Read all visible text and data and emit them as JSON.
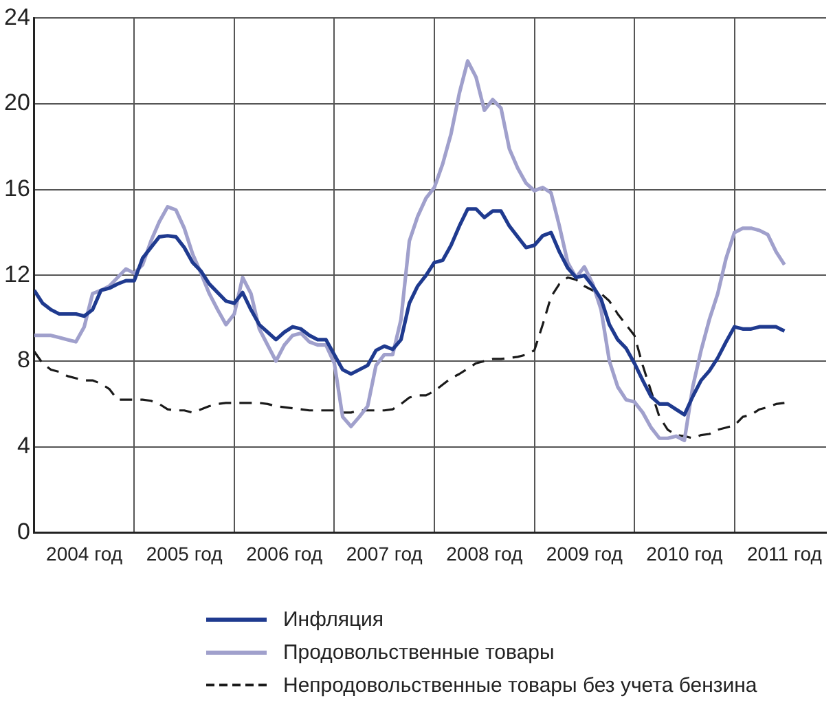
{
  "chart_data": {
    "type": "line",
    "x": [
      "2004-01",
      "2004-02",
      "2004-03",
      "2004-04",
      "2004-05",
      "2004-06",
      "2004-07",
      "2004-08",
      "2004-09",
      "2004-10",
      "2004-11",
      "2004-12",
      "2005-01",
      "2005-02",
      "2005-03",
      "2005-04",
      "2005-05",
      "2005-06",
      "2005-07",
      "2005-08",
      "2005-09",
      "2005-10",
      "2005-11",
      "2005-12",
      "2006-01",
      "2006-02",
      "2006-03",
      "2006-04",
      "2006-05",
      "2006-06",
      "2006-07",
      "2006-08",
      "2006-09",
      "2006-10",
      "2006-11",
      "2006-12",
      "2007-01",
      "2007-02",
      "2007-03",
      "2007-04",
      "2007-05",
      "2007-06",
      "2007-07",
      "2007-08",
      "2007-09",
      "2007-10",
      "2007-11",
      "2007-12",
      "2008-01",
      "2008-02",
      "2008-03",
      "2008-04",
      "2008-05",
      "2008-06",
      "2008-07",
      "2008-08",
      "2008-09",
      "2008-10",
      "2008-11",
      "2008-12",
      "2009-01",
      "2009-02",
      "2009-03",
      "2009-04",
      "2009-05",
      "2009-06",
      "2009-07",
      "2009-08",
      "2009-09",
      "2009-10",
      "2009-11",
      "2009-12",
      "2010-01",
      "2010-02",
      "2010-03",
      "2010-04",
      "2010-05",
      "2010-06",
      "2010-07",
      "2010-08",
      "2010-09",
      "2010-10",
      "2010-11",
      "2010-12",
      "2011-01",
      "2011-02",
      "2011-03",
      "2011-04",
      "2011-05",
      "2011-06",
      "2011-07"
    ],
    "series": [
      {
        "name": "Инфляция",
        "color": "#1f3a8f",
        "values": [
          11.3,
          10.7,
          10.4,
          10.2,
          10.2,
          10.2,
          10.1,
          10.4,
          11.3,
          11.4,
          11.6,
          11.75,
          11.75,
          12.8,
          13.3,
          13.8,
          13.85,
          13.8,
          13.3,
          12.6,
          12.2,
          11.6,
          11.2,
          10.8,
          10.7,
          11.2,
          10.4,
          9.7,
          9.35,
          9.0,
          9.35,
          9.6,
          9.5,
          9.2,
          9.0,
          9.0,
          8.3,
          7.6,
          7.4,
          7.6,
          7.8,
          8.5,
          8.7,
          8.55,
          9.0,
          10.7,
          11.5,
          12.0,
          12.6,
          12.7,
          13.4,
          14.3,
          15.1,
          15.1,
          14.7,
          15.0,
          15.0,
          14.3,
          13.8,
          13.3,
          13.4,
          13.85,
          14.0,
          13.1,
          12.35,
          11.9,
          12.0,
          11.5,
          10.9,
          9.7,
          9.0,
          8.6,
          7.9,
          7.1,
          6.35,
          6.0,
          6.0,
          5.75,
          5.5,
          6.35,
          7.1,
          7.55,
          8.15,
          8.9,
          9.6,
          9.5,
          9.5,
          9.6,
          9.6,
          9.6,
          9.4
        ]
      },
      {
        "name": "Продовольственные товары",
        "color": "#a0a0cc",
        "values": [
          9.2,
          9.2,
          9.2,
          9.1,
          9.0,
          8.9,
          9.6,
          11.15,
          11.3,
          11.5,
          11.9,
          12.3,
          12.1,
          12.5,
          13.6,
          14.5,
          15.2,
          15.05,
          14.2,
          13.0,
          12.1,
          11.15,
          10.4,
          9.7,
          10.2,
          11.9,
          11.15,
          9.5,
          8.75,
          8.0,
          8.75,
          9.2,
          9.3,
          8.9,
          8.75,
          8.75,
          7.9,
          5.4,
          4.95,
          5.4,
          5.9,
          7.8,
          8.3,
          8.3,
          9.95,
          13.6,
          14.75,
          15.6,
          16.1,
          17.2,
          18.6,
          20.5,
          22.0,
          21.25,
          19.7,
          20.2,
          19.8,
          17.9,
          17.0,
          16.3,
          15.95,
          16.1,
          15.85,
          14.3,
          12.6,
          11.9,
          12.4,
          11.6,
          10.4,
          8.0,
          6.8,
          6.2,
          6.1,
          5.6,
          4.9,
          4.4,
          4.4,
          4.5,
          4.3,
          6.8,
          8.5,
          9.95,
          11.15,
          12.8,
          14.0,
          14.2,
          14.2,
          14.1,
          13.9,
          13.1,
          12.5
        ]
      },
      {
        "name": "Непродовольственные товары без учета бензина",
        "color": "#1a1a1a",
        "line_style": "dashed",
        "values": [
          8.45,
          7.9,
          7.6,
          7.5,
          7.3,
          7.2,
          7.1,
          7.1,
          6.95,
          6.7,
          6.2,
          6.2,
          6.2,
          6.2,
          6.15,
          6.0,
          5.75,
          5.7,
          5.7,
          5.6,
          5.75,
          5.9,
          6.0,
          6.05,
          6.05,
          6.05,
          6.05,
          6.05,
          6.0,
          5.9,
          5.85,
          5.8,
          5.75,
          5.7,
          5.7,
          5.7,
          5.7,
          5.6,
          5.6,
          5.7,
          5.7,
          5.7,
          5.7,
          5.75,
          6.0,
          6.3,
          6.4,
          6.4,
          6.6,
          6.9,
          7.2,
          7.4,
          7.65,
          7.9,
          8.0,
          8.1,
          8.1,
          8.15,
          8.2,
          8.3,
          8.5,
          9.7,
          11.0,
          11.6,
          11.9,
          11.8,
          11.5,
          11.3,
          11.15,
          10.8,
          10.2,
          9.7,
          9.2,
          7.8,
          6.6,
          5.4,
          4.8,
          4.55,
          4.5,
          4.4,
          4.55,
          4.6,
          4.8,
          4.9,
          5.0,
          5.4,
          5.5,
          5.75,
          5.85,
          6.0,
          6.05
        ]
      }
    ],
    "xlim": [
      "2004-01",
      "2011-12"
    ],
    "xticks": [
      {
        "value": "2004-07",
        "label": "2004 год"
      },
      {
        "value": "2005-01",
        "label": null
      },
      {
        "value": "2005-07",
        "label": "2005 год"
      },
      {
        "value": "2006-01",
        "label": null
      },
      {
        "value": "2006-07",
        "label": "2006 год"
      },
      {
        "value": "2007-01",
        "label": null
      },
      {
        "value": "2007-07",
        "label": "2007 год"
      },
      {
        "value": "2008-01",
        "label": null
      },
      {
        "value": "2008-07",
        "label": "2008 год"
      },
      {
        "value": "2009-01",
        "label": null
      },
      {
        "value": "2009-07",
        "label": "2009 год"
      },
      {
        "value": "2010-01",
        "label": null
      },
      {
        "value": "2010-07",
        "label": "2010 год"
      },
      {
        "value": "2011-01",
        "label": null
      },
      {
        "value": "2011-07",
        "label": "2011 год"
      }
    ],
    "ylim": [
      0,
      24
    ],
    "yticks": [
      0,
      4,
      8,
      12,
      16,
      20,
      24
    ],
    "grid": true,
    "legend": "bottom",
    "marker": "none"
  }
}
